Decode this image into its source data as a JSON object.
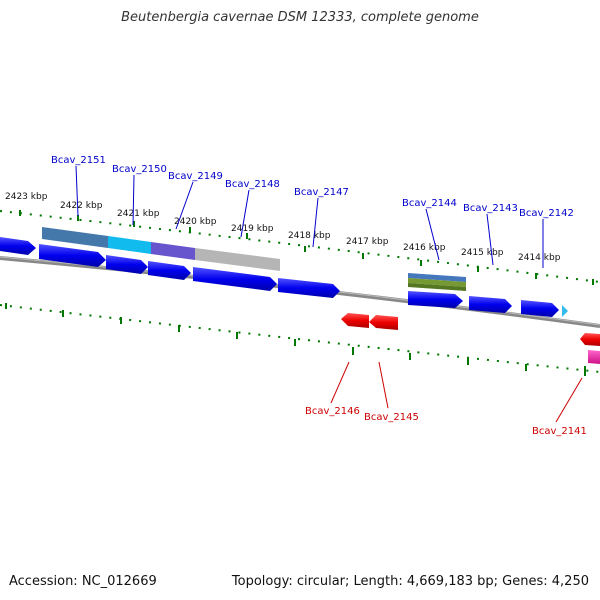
{
  "title": "Beutenbergia cavernae DSM 12333, complete genome",
  "footer": {
    "accession": "Accession: NC_012669",
    "topology": "Topology: circular; Length: 4,669,183 bp; Genes: 4,250"
  },
  "scale_labels": [
    "2423 kbp",
    "2422 kbp",
    "2421 kbp",
    "2420 kbp",
    "2419 kbp",
    "2418 kbp",
    "2417 kbp",
    "2416 kbp",
    "2415 kbp",
    "2414 kbp"
  ],
  "forward_gene_labels": [
    "Bcav_2151",
    "Bcav_2150",
    "Bcav_2149",
    "Bcav_2148",
    "Bcav_2147",
    "Bcav_2144",
    "Bcav_2143",
    "Bcav_2142"
  ],
  "reverse_gene_labels": [
    "Bcav_2146",
    "Bcav_2145",
    "Bcav_2141"
  ],
  "colors": {
    "forward_gene": "#0000ee",
    "reverse_gene": "#ee0000",
    "forward_label": "#0000cc",
    "reverse_label": "#cc0000",
    "scale_ticks": "#007700",
    "backbone": "#888888",
    "small_forward_gene": "#33bbee",
    "reverse_pink_gene": "#ee2299"
  }
}
